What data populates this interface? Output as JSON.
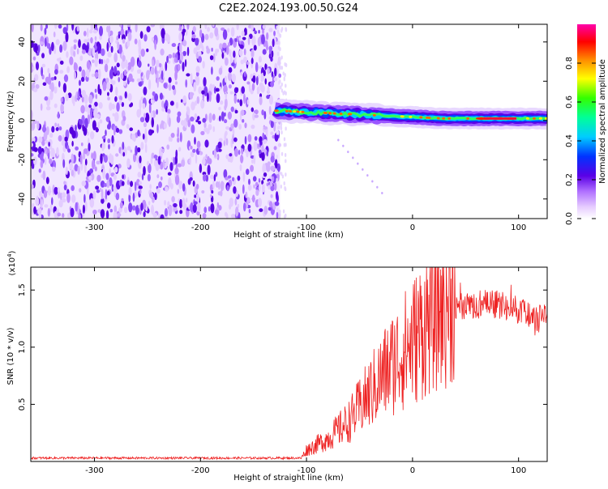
{
  "title": "C2E2.2024.193.00.50.G24",
  "chart_data": [
    {
      "type": "heatmap",
      "xlabel": "Height of straight line (km)",
      "ylabel": "Frequency (Hz)",
      "xlim": [
        -360,
        127
      ],
      "ylim": [
        -50,
        49
      ],
      "x_ticks": [
        "-300",
        "-200",
        "-100",
        "0",
        "100"
      ],
      "x_tick_values": [
        -300,
        -200,
        -100,
        0,
        100
      ],
      "y_ticks": [
        "-40",
        "-20",
        "0",
        "20",
        "40"
      ],
      "y_tick_values": [
        -40,
        -20,
        0,
        20,
        40
      ],
      "colorbar": {
        "label": "Normalized spectral amplitude",
        "range": [
          0,
          1
        ],
        "ticks": [
          "0.0",
          "0.2",
          "0.4",
          "0.6",
          "0.8"
        ],
        "tick_values": [
          0,
          0.2,
          0.4,
          0.6,
          0.8
        ]
      },
      "regions": [
        {
          "desc": "broadband noise",
          "x": [
            -360,
            -125
          ],
          "y": [
            -50,
            49
          ],
          "amplitude": 0.1
        },
        {
          "desc": "signal band",
          "x": [
            -130,
            127
          ],
          "y_center_start": 5,
          "y_center_end": 1,
          "amplitude_peak": 1.0
        }
      ]
    },
    {
      "type": "line",
      "xlabel": "Height of straight line (km)",
      "ylabel": "SNR (10 * v/v)",
      "y_scale_label": "(x10",
      "y_scale_exponent": "4",
      "y_scale_suffix": ")",
      "xlim": [
        -360,
        127
      ],
      "ylim": [
        0,
        1.7
      ],
      "x_ticks": [
        "-300",
        "-200",
        "-100",
        "0",
        "100"
      ],
      "x_tick_values": [
        -300,
        -200,
        -100,
        0,
        100
      ],
      "y_ticks": [
        "0.5",
        "1.0",
        "1.5"
      ],
      "y_tick_values": [
        0.5,
        1.0,
        1.5
      ],
      "series": [
        {
          "color": "#ee2222",
          "profile_x": [
            -360,
            -105,
            -100,
            -80,
            -60,
            -40,
            -20,
            0,
            20,
            40,
            60,
            80,
            100,
            115,
            127
          ],
          "profile_y": [
            0.03,
            0.03,
            0.1,
            0.2,
            0.35,
            0.6,
            0.85,
            1.05,
            1.3,
            1.48,
            1.5,
            1.5,
            1.45,
            1.35,
            1.4
          ]
        }
      ]
    }
  ]
}
